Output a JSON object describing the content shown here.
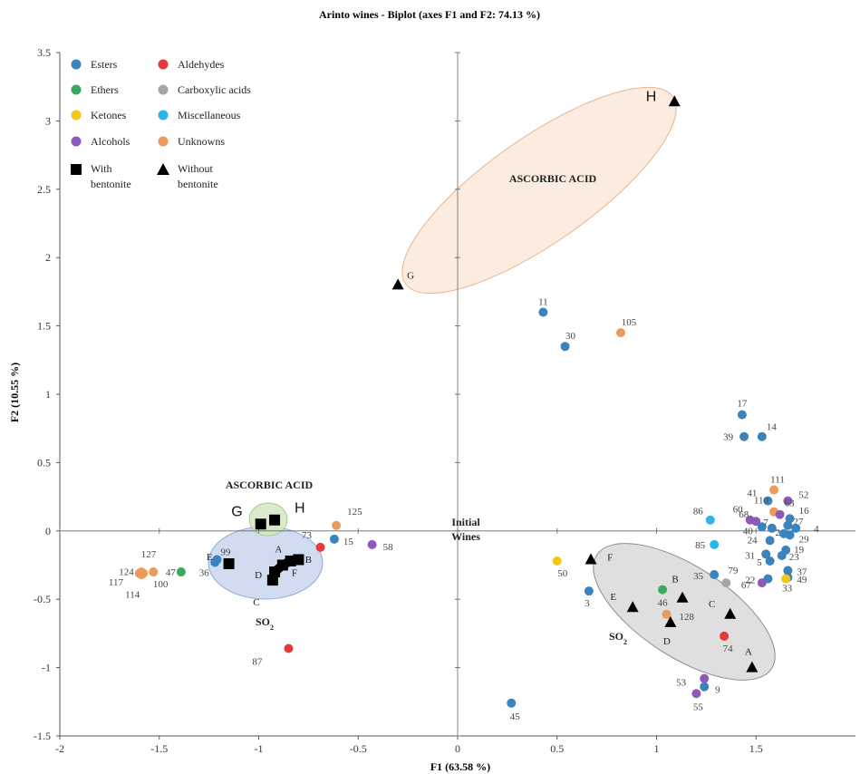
{
  "chart_data": {
    "type": "scatter",
    "title": "Arinto wines - Biplot (axes F1 and F2: 74.13 %)",
    "xlabel": "F1 (63.58 %)",
    "ylabel": "F2 (10.55 %)",
    "xlim": [
      -2,
      2
    ],
    "ylim": [
      -1.5,
      3.5
    ],
    "xticks": [
      -2,
      -1.5,
      -1,
      -0.5,
      0,
      0.5,
      1,
      1.5
    ],
    "xtick_labels": [
      "-2",
      "-1.5",
      "-1",
      "-0.5",
      "0",
      "0.5",
      "1",
      "1.5"
    ],
    "yticks": [
      -1.5,
      -1,
      -0.5,
      0,
      0.5,
      1,
      1.5,
      2,
      2.5,
      3,
      3.5
    ],
    "ytick_labels": [
      "-1.5",
      "-1",
      "-0.5",
      "0",
      "0.5",
      "1",
      "1.5",
      "2",
      "2.5",
      "3",
      "3.5"
    ],
    "grid": false,
    "legend_position": "top-left",
    "legend": [
      {
        "label": "Esters",
        "marker": "circle",
        "color": "#3b83bd"
      },
      {
        "label": "Aldehydes",
        "marker": "circle",
        "color": "#e8383d"
      },
      {
        "label": "Ethers",
        "marker": "circle",
        "color": "#3aa85e"
      },
      {
        "label": "Carboxylic acids",
        "marker": "circle",
        "color": "#a6a6a6"
      },
      {
        "label": "Ketones",
        "marker": "circle",
        "color": "#f5c518"
      },
      {
        "label": "Miscellaneous",
        "marker": "circle",
        "color": "#29b6e8"
      },
      {
        "label": "Alcohols",
        "marker": "circle",
        "color": "#8e5ab8"
      },
      {
        "label": "Unknowns",
        "marker": "circle",
        "color": "#ec9a5c"
      },
      {
        "label": "With bentonite",
        "marker": "square",
        "color": "#000000"
      },
      {
        "label": "Without bentonite",
        "marker": "triangle",
        "color": "#000000"
      }
    ],
    "categories": {
      "Esters": "#3b83bd",
      "Aldehydes": "#e8383d",
      "Ethers": "#3aa85e",
      "Carboxylic acids": "#a6a6a6",
      "Ketones": "#f5c518",
      "Miscellaneous": "#29b6e8",
      "Alcohols": "#8e5ab8",
      "Unknowns": "#ec9a5c"
    },
    "compounds": [
      {
        "label": "11",
        "category": "Esters",
        "x": 0.43,
        "y": 1.6
      },
      {
        "label": "30",
        "category": "Esters",
        "x": 0.54,
        "y": 1.35
      },
      {
        "label": "105",
        "category": "Unknowns",
        "x": 0.82,
        "y": 1.45
      },
      {
        "label": "17",
        "category": "Esters",
        "x": 1.43,
        "y": 0.85
      },
      {
        "label": "39",
        "category": "Esters",
        "x": 1.44,
        "y": 0.69
      },
      {
        "label": "14",
        "category": "Esters",
        "x": 1.53,
        "y": 0.69
      },
      {
        "label": "111",
        "category": "Unknowns",
        "x": 1.59,
        "y": 0.3
      },
      {
        "label": "41",
        "category": "Esters",
        "x": 1.56,
        "y": 0.22
      },
      {
        "label": "52",
        "category": "Alcohols",
        "x": 1.66,
        "y": 0.22
      },
      {
        "label": "68",
        "category": "Alcohols",
        "x": 1.5,
        "y": 0.07
      },
      {
        "label": "60",
        "category": "Alcohols",
        "x": 1.47,
        "y": 0.08
      },
      {
        "label": "110",
        "category": "Unknowns",
        "x": 1.59,
        "y": 0.14
      },
      {
        "label": "63",
        "category": "Alcohols",
        "x": 1.62,
        "y": 0.12
      },
      {
        "label": "16",
        "category": "Esters",
        "x": 1.67,
        "y": 0.09
      },
      {
        "label": "27",
        "category": "Esters",
        "x": 1.66,
        "y": 0.04
      },
      {
        "label": "4",
        "category": "Esters",
        "x": 1.7,
        "y": 0.02
      },
      {
        "label": "40",
        "category": "Esters",
        "x": 1.53,
        "y": 0.03
      },
      {
        "label": "7",
        "category": "Esters",
        "x": 1.58,
        "y": 0.02
      },
      {
        "label": "2",
        "category": "Esters",
        "x": 1.64,
        "y": -0.02
      },
      {
        "label": "29",
        "category": "Esters",
        "x": 1.67,
        "y": -0.03
      },
      {
        "label": "86",
        "category": "Miscellaneous",
        "x": 1.27,
        "y": 0.08
      },
      {
        "label": "85",
        "category": "Miscellaneous",
        "x": 1.29,
        "y": -0.1
      },
      {
        "label": "24",
        "category": "Esters",
        "x": 1.57,
        "y": -0.07
      },
      {
        "label": "19",
        "category": "Esters",
        "x": 1.65,
        "y": -0.14
      },
      {
        "label": "31",
        "category": "Esters",
        "x": 1.55,
        "y": -0.17
      },
      {
        "label": "23",
        "category": "Esters",
        "x": 1.63,
        "y": -0.18
      },
      {
        "label": "5",
        "category": "Esters",
        "x": 1.57,
        "y": -0.22
      },
      {
        "label": "37",
        "category": "Esters",
        "x": 1.66,
        "y": -0.29
      },
      {
        "label": "35",
        "category": "Esters",
        "x": 1.29,
        "y": -0.32
      },
      {
        "label": "79",
        "category": "Carboxylic acids",
        "x": 1.35,
        "y": -0.38
      },
      {
        "label": "22",
        "category": "Esters",
        "x": 1.56,
        "y": -0.35
      },
      {
        "label": "67",
        "category": "Alcohols",
        "x": 1.53,
        "y": -0.38
      },
      {
        "label": "49",
        "category": "Esters",
        "x": 1.66,
        "y": -0.34
      },
      {
        "label": "33",
        "category": "Ketones",
        "x": 1.65,
        "y": -0.35
      },
      {
        "label": "46",
        "category": "Ethers",
        "x": 1.03,
        "y": -0.43
      },
      {
        "label": "128",
        "category": "Unknowns",
        "x": 1.05,
        "y": -0.61
      },
      {
        "label": "74",
        "category": "Aldehydes",
        "x": 1.34,
        "y": -0.77
      },
      {
        "label": "50",
        "category": "Ketones",
        "x": 0.5,
        "y": -0.22
      },
      {
        "label": "3",
        "category": "Esters",
        "x": 0.66,
        "y": -0.44
      },
      {
        "label": "53",
        "category": "Alcohols",
        "x": 1.24,
        "y": -1.08
      },
      {
        "label": "9",
        "category": "Esters",
        "x": 1.24,
        "y": -1.14
      },
      {
        "label": "55",
        "category": "Alcohols",
        "x": 1.2,
        "y": -1.19
      },
      {
        "label": "45",
        "category": "Esters",
        "x": 0.27,
        "y": -1.26
      },
      {
        "label": "125",
        "category": "Unknowns",
        "x": -0.61,
        "y": 0.04
      },
      {
        "label": "15",
        "category": "Esters",
        "x": -0.62,
        "y": -0.06
      },
      {
        "label": "73",
        "category": "Aldehydes",
        "x": -0.69,
        "y": -0.12
      },
      {
        "label": "58",
        "category": "Alcohols",
        "x": -0.43,
        "y": -0.1
      },
      {
        "label": "87",
        "category": "Aldehydes",
        "x": -0.85,
        "y": -0.86
      },
      {
        "label": "99",
        "category": "Esters",
        "x": -1.21,
        "y": -0.21
      },
      {
        "label": "36",
        "category": "Esters",
        "x": -1.22,
        "y": -0.23
      },
      {
        "label": "47",
        "category": "Ethers",
        "x": -1.39,
        "y": -0.3
      },
      {
        "label": "100",
        "category": "Unknowns",
        "x": -1.53,
        "y": -0.3
      },
      {
        "label": "127",
        "category": "Unknowns",
        "x": -1.59,
        "y": -0.3
      },
      {
        "label": "124",
        "category": "Unknowns",
        "x": -1.6,
        "y": -0.31
      },
      {
        "label": "117",
        "category": "Unknowns",
        "x": -1.59,
        "y": -0.32
      },
      {
        "label": "114",
        "category": "Unknowns",
        "x": -1.58,
        "y": -0.31
      }
    ],
    "wines_with_bentonite": [
      {
        "label": "G",
        "x": -0.99,
        "y": 0.05
      },
      {
        "label": "H",
        "x": -0.92,
        "y": 0.08
      },
      {
        "label": "E",
        "x": -1.15,
        "y": -0.24
      },
      {
        "label": "A",
        "x": -0.8,
        "y": -0.21
      },
      {
        "label": "B",
        "x": -0.84,
        "y": -0.22
      },
      {
        "label": "F",
        "x": -0.88,
        "y": -0.25
      },
      {
        "label": "D",
        "x": -0.92,
        "y": -0.3
      },
      {
        "label": "C",
        "x": -0.93,
        "y": -0.36
      }
    ],
    "wines_without_bentonite": [
      {
        "label": "H",
        "x": 1.09,
        "y": 3.14
      },
      {
        "label": "G",
        "x": -0.3,
        "y": 1.8
      },
      {
        "label": "F",
        "x": 0.67,
        "y": -0.21
      },
      {
        "label": "E",
        "x": 0.88,
        "y": -0.56
      },
      {
        "label": "B",
        "x": 1.13,
        "y": -0.49
      },
      {
        "label": "C",
        "x": 1.37,
        "y": -0.61
      },
      {
        "label": "D",
        "x": 1.07,
        "y": -0.67
      },
      {
        "label": "A",
        "x": 1.48,
        "y": -1.0
      }
    ],
    "annotations": [
      {
        "text": "ASCORBIC ACID"
      },
      {
        "text": "ASCORBIC ACID"
      },
      {
        "text": "SO2"
      },
      {
        "text": "SO2"
      },
      {
        "text": "Initial Wines"
      }
    ]
  }
}
